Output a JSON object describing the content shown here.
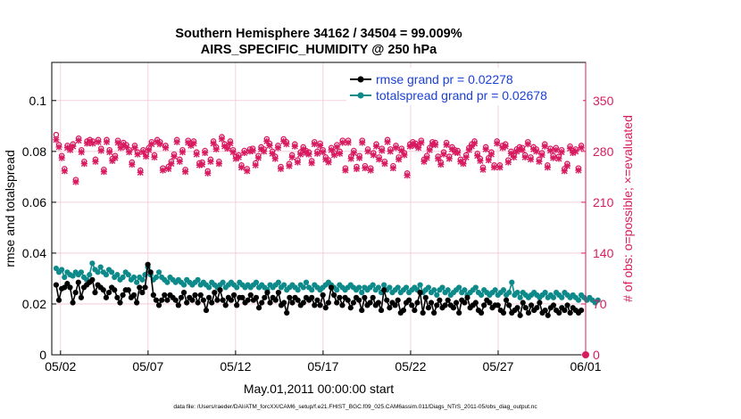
{
  "chart_data": {
    "type": "line",
    "title": "Southern Hemisphere 34162 / 34504 = 99.009%",
    "subtitle": "AIRS_SPECIFIC_HUMIDITY @ 250 hPa",
    "xlabel": "May.01,2011 00:00:00 start",
    "ylabel_left": "rmse and totalspread",
    "ylabel_right": "# of obs: o=possible; ×=evaluated",
    "footer": "data file: /Users/raeder/DAI/ATM_forcXX/CAM6_setup/f.e21.FHIST_BGC.f09_025.CAM6assim.011/Diags_NTrS_2011-05/obs_diag_output.nc",
    "x_ticks": [
      "05/02",
      "05/07",
      "05/12",
      "05/17",
      "05/22",
      "05/27",
      "06/01"
    ],
    "x_tick_days": [
      1,
      6,
      11,
      16,
      21,
      26,
      31
    ],
    "xlim": [
      0.5,
      31.0
    ],
    "ylim_left": [
      0,
      0.115
    ],
    "y_ticks_left": [
      "0",
      "0.02",
      "0.04",
      "0.06",
      "0.08",
      "0.1"
    ],
    "ylim_right": [
      0,
      402.5
    ],
    "y_ticks_right": [
      "0",
      "70",
      "140",
      "210",
      "280",
      "350"
    ],
    "legend": [
      {
        "label": "rmse grand pr = 0.02278",
        "color": "#000000"
      },
      {
        "label": "totalspread grand pr = 0.02678",
        "color": "#0e8a8a"
      }
    ],
    "colors": {
      "rmse": "#000000",
      "spread": "#0e8a8a",
      "obs": "#d81b60",
      "grid": "#f2c6d4"
    },
    "series": [
      {
        "name": "rmse",
        "values": [
          0.0275,
          0.0215,
          0.026,
          0.0265,
          0.028,
          0.0265,
          0.0205,
          0.0245,
          0.0285,
          0.0225,
          0.0265,
          0.0275,
          0.0285,
          0.0295,
          0.0245,
          0.0275,
          0.0265,
          0.0255,
          0.0225,
          0.0245,
          0.0265,
          0.0255,
          0.0225,
          0.0205,
          0.0235,
          0.0255,
          0.0255,
          0.0225,
          0.0235,
          0.0205,
          0.0265,
          0.0245,
          0.0265,
          0.0355,
          0.0325,
          0.0235,
          0.0215,
          0.0195,
          0.0215,
          0.0235,
          0.0215,
          0.0235,
          0.0225,
          0.0215,
          0.0195,
          0.0225,
          0.0245,
          0.0205,
          0.0225,
          0.0215,
          0.0235,
          0.0205,
          0.0235,
          0.0215,
          0.0175,
          0.0225,
          0.0205,
          0.0245,
          0.0215,
          0.0255,
          0.0215,
          0.0195,
          0.0225,
          0.0215,
          0.0235,
          0.0195,
          0.0225,
          0.0225,
          0.0205,
          0.0215,
          0.0235,
          0.0215,
          0.0225,
          0.0185,
          0.0205,
          0.0225,
          0.0245,
          0.0205,
          0.0225,
          0.0215,
          0.0245,
          0.0195,
          0.0205,
          0.0165,
          0.0225,
          0.0205,
          0.0225,
          0.0215,
          0.0195,
          0.0205,
          0.0225,
          0.0215,
          0.0225,
          0.0195,
          0.0215,
          0.0195,
          0.0235,
          0.0185,
          0.0205,
          0.0265,
          0.0235,
          0.0205,
          0.0225,
          0.0195,
          0.0225,
          0.0215,
          0.0185,
          0.0205,
          0.0225,
          0.0215,
          0.0175,
          0.0225,
          0.0195,
          0.0205,
          0.0225,
          0.0195,
          0.0205,
          0.0175,
          0.0255,
          0.0215,
          0.0185,
          0.0205,
          0.0195,
          0.0215,
          0.0165,
          0.0175,
          0.0205,
          0.0215,
          0.0195,
          0.0175,
          0.0205,
          0.0245,
          0.0165,
          0.0225,
          0.0185,
          0.0205,
          0.0165,
          0.0195,
          0.0215,
          0.0185,
          0.0195,
          0.0215,
          0.0195,
          0.0185,
          0.0205,
          0.0165,
          0.0215,
          0.0205,
          0.0225,
          0.0185,
          0.0195,
          0.0205,
          0.0175,
          0.0165,
          0.0195,
          0.0215,
          0.0205,
          0.0185,
          0.0195,
          0.0195,
          0.0175,
          0.0165,
          0.0215,
          0.0195,
          0.0165,
          0.0175,
          0.0185,
          0.0155,
          0.0205,
          0.0185,
          0.0165,
          0.0195,
          0.0175,
          0.0185,
          0.0205,
          0.0165,
          0.0175,
          0.0155,
          0.0185,
          0.0195,
          0.0175,
          0.0165,
          0.0185,
          0.0175,
          0.0195,
          0.0165,
          0.0185,
          0.0175,
          0.0165,
          0.0175
        ]
      },
      {
        "name": "totalspread",
        "values": [
          0.034,
          0.0325,
          0.0335,
          0.0305,
          0.0325,
          0.0315,
          0.031,
          0.0325,
          0.0315,
          0.0325,
          0.0305,
          0.0295,
          0.0315,
          0.036,
          0.0335,
          0.0325,
          0.0345,
          0.0325,
          0.0315,
          0.0335,
          0.0325,
          0.0305,
          0.0315,
          0.0295,
          0.0305,
          0.0325,
          0.0315,
          0.0295,
          0.0305,
          0.0285,
          0.0305,
          0.0295,
          0.0315,
          0.0345,
          0.0315,
          0.0295,
          0.0305,
          0.0325,
          0.0305,
          0.0295,
          0.0285,
          0.0305,
          0.0295,
          0.0285,
          0.0295,
          0.0285,
          0.0275,
          0.0295,
          0.0285,
          0.0275,
          0.0285,
          0.0295,
          0.0275,
          0.0285,
          0.0275,
          0.0265,
          0.0285,
          0.0275,
          0.0265,
          0.0275,
          0.0285,
          0.0265,
          0.0275,
          0.0285,
          0.0275,
          0.0265,
          0.0285,
          0.0275,
          0.0265,
          0.0275,
          0.0265,
          0.0275,
          0.0285,
          0.0265,
          0.0275,
          0.0265,
          0.0255,
          0.0275,
          0.0265,
          0.0275,
          0.0285,
          0.0265,
          0.0275,
          0.0255,
          0.0265,
          0.0275,
          0.0265,
          0.0255,
          0.0275,
          0.0265,
          0.0285,
          0.0265,
          0.0255,
          0.0275,
          0.0265,
          0.0255,
          0.0265,
          0.0275,
          0.0285,
          0.0275,
          0.0265,
          0.0255,
          0.0275,
          0.0265,
          0.0255,
          0.0265,
          0.0275,
          0.0265,
          0.0255,
          0.0265,
          0.0245,
          0.0265,
          0.0255,
          0.0265,
          0.0275,
          0.0255,
          0.0265,
          0.0245,
          0.0275,
          0.0255,
          0.0265,
          0.0245,
          0.0255,
          0.0265,
          0.0245,
          0.0255,
          0.0265,
          0.0245,
          0.0255,
          0.0265,
          0.0255,
          0.0275,
          0.0245,
          0.0255,
          0.0265,
          0.0245,
          0.0255,
          0.0235,
          0.0255,
          0.0265,
          0.0245,
          0.0255,
          0.0235,
          0.0245,
          0.0255,
          0.0265,
          0.0245,
          0.0255,
          0.0235,
          0.0245,
          0.0255,
          0.0265,
          0.0245,
          0.0235,
          0.0255,
          0.0245,
          0.0235,
          0.0245,
          0.0255,
          0.0235,
          0.0245,
          0.0255,
          0.0235,
          0.0245,
          0.0285,
          0.0235,
          0.0245,
          0.0225,
          0.0245,
          0.0235,
          0.0225,
          0.0235,
          0.0245,
          0.0235,
          0.0225,
          0.0235,
          0.0245,
          0.0225,
          0.0235,
          0.0225,
          0.0245,
          0.0235,
          0.0225,
          0.0245,
          0.0235,
          0.0225,
          0.0235,
          0.0225,
          0.0215,
          0.0235,
          0.0225,
          0.0215,
          0.0225,
          0.0215,
          0.0205,
          0.0215
        ]
      },
      {
        "name": "obs_evaluated",
        "values": [
          296,
          286,
          271,
          253,
          285,
          282,
          287,
          238,
          295,
          279,
          263,
          291,
          293,
          291,
          266,
          293,
          281,
          252,
          293,
          279,
          267,
          271,
          292,
          285,
          289,
          286,
          279,
          262,
          285,
          276,
          251,
          279,
          273,
          282,
          290,
          272,
          293,
          290,
          254,
          285,
          256,
          263,
          273,
          293,
          266,
          279,
          252,
          292,
          288,
          291,
          276,
          261,
          262,
          278,
          250,
          266,
          291,
          283,
          263,
          297,
          287,
          284,
          291,
          279,
          270,
          272,
          258,
          278,
          253,
          280,
          281,
          261,
          271,
          283,
          280,
          294,
          288,
          277,
          270,
          285,
          256,
          294,
          290,
          260,
          272,
          287,
          265,
          276,
          283,
          278,
          276,
          264,
          290,
          277,
          288,
          279,
          269,
          265,
          282,
          275,
          286,
          277,
          292,
          254,
          292,
          270,
          278,
          256,
          271,
          292,
          257,
          280,
          254,
          275,
          287,
          269,
          281,
          263,
          293,
          280,
          257,
          285,
          269,
          281,
          275,
          247,
          287,
          290,
          288,
          285,
          292,
          266,
          271,
          282,
          290,
          289,
          270,
          262,
          276,
          289,
          270,
          283,
          279,
          278,
          266,
          263,
          272,
          282,
          287,
          291,
          274,
          267,
          255,
          283,
          268,
          276,
          258,
          291,
          258,
          285,
          287,
          265,
          277,
          272,
          280,
          283,
          282,
          272,
          290,
          269,
          283,
          280,
          266,
          275,
          287,
          258,
          281,
          271,
          282,
          270,
          279,
          253,
          260,
          284,
          278,
          280,
          254,
          285
        ]
      },
      {
        "name": "obs_possible",
        "values": [
          303,
          289,
          274,
          256,
          288,
          285,
          290,
          241,
          298,
          282,
          266,
          294,
          296,
          294,
          269,
          296,
          284,
          255,
          296,
          282,
          270,
          274,
          295,
          288,
          292,
          289,
          282,
          265,
          288,
          279,
          254,
          282,
          276,
          285,
          293,
          275,
          296,
          293,
          257,
          288,
          259,
          266,
          276,
          296,
          269,
          282,
          255,
          295,
          291,
          294,
          279,
          264,
          265,
          281,
          253,
          269,
          294,
          286,
          266,
          300,
          290,
          287,
          294,
          282,
          273,
          275,
          261,
          281,
          256,
          283,
          284,
          264,
          274,
          286,
          283,
          297,
          291,
          280,
          273,
          288,
          259,
          297,
          293,
          263,
          275,
          290,
          268,
          279,
          286,
          281,
          279,
          267,
          293,
          280,
          291,
          282,
          272,
          268,
          285,
          278,
          289,
          280,
          295,
          257,
          295,
          273,
          281,
          259,
          274,
          295,
          260,
          283,
          257,
          278,
          290,
          272,
          284,
          266,
          296,
          283,
          260,
          288,
          272,
          284,
          278,
          250,
          290,
          293,
          291,
          288,
          295,
          269,
          274,
          285,
          293,
          292,
          273,
          265,
          279,
          292,
          273,
          286,
          282,
          281,
          269,
          266,
          275,
          285,
          290,
          294,
          277,
          270,
          258,
          286,
          271,
          279,
          261,
          294,
          261,
          288,
          290,
          268,
          280,
          275,
          283,
          286,
          285,
          275,
          293,
          272,
          286,
          283,
          269,
          278,
          290,
          261,
          284,
          274,
          285,
          273,
          282,
          256,
          263,
          287,
          281,
          283,
          257,
          288
        ]
      }
    ]
  }
}
